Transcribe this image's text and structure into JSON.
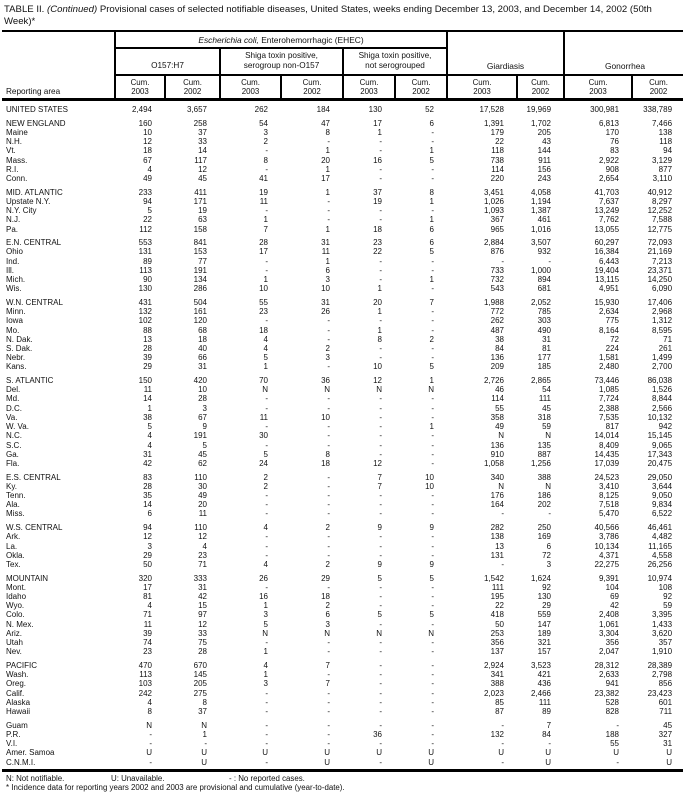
{
  "title": {
    "prefix": "TABLE II. ",
    "continued": "(Continued)",
    "rest": " Provisional cases of selected notifiable diseases, United States, weeks ending December 13, 2003, and December 14, 2002 (50th Week)*"
  },
  "header": {
    "reporting_area": "Reporting area",
    "ehec_italic": "Escherichia coli,",
    "ehec_rest": " Enterohemorrhagic (EHEC)",
    "subgroups": [
      {
        "line1": "O157:H7",
        "line2": ""
      },
      {
        "line1": "Shiga toxin positive,",
        "line2": "serogroup non-O157"
      },
      {
        "line1": "Shiga toxin positive,",
        "line2": "not serogrouped"
      }
    ],
    "giardiasis": "Giardiasis",
    "gonorrhea": "Gonorrhea",
    "cum": {
      "label": "Cum.",
      "y2003": "2003",
      "y2002": "2002"
    }
  },
  "table": {
    "columns": [
      "O157:H7 Cum. 2003",
      "O157:H7 Cum. 2002",
      "Shiga toxin positive serogroup non-O157 Cum. 2003",
      "Shiga toxin positive serogroup non-O157 Cum. 2002",
      "Shiga toxin positive not serogrouped Cum. 2003",
      "Shiga toxin positive not serogrouped Cum. 2002",
      "Giardiasis Cum. 2003",
      "Giardiasis Cum. 2002",
      "Gonorrhea Cum. 2003",
      "Gonorrhea Cum. 2002"
    ],
    "rows": [
      {
        "area": "UNITED STATES",
        "gap": true,
        "values": [
          "2,494",
          "3,657",
          "262",
          "184",
          "130",
          "52",
          "17,528",
          "19,969",
          "300,981",
          "338,789"
        ]
      },
      {
        "area": "NEW ENGLAND",
        "gap": true,
        "values": [
          "160",
          "258",
          "54",
          "47",
          "17",
          "6",
          "1,391",
          "1,702",
          "6,813",
          "7,466"
        ]
      },
      {
        "area": "Maine",
        "gap": false,
        "values": [
          "10",
          "37",
          "3",
          "8",
          "1",
          "-",
          "179",
          "205",
          "170",
          "138"
        ]
      },
      {
        "area": "N.H.",
        "gap": false,
        "values": [
          "12",
          "33",
          "2",
          "-",
          "-",
          "-",
          "22",
          "43",
          "76",
          "118"
        ]
      },
      {
        "area": "Vt.",
        "gap": false,
        "values": [
          "18",
          "14",
          "-",
          "1",
          "-",
          "1",
          "118",
          "144",
          "83",
          "94"
        ]
      },
      {
        "area": "Mass.",
        "gap": false,
        "values": [
          "67",
          "117",
          "8",
          "20",
          "16",
          "5",
          "738",
          "911",
          "2,922",
          "3,129"
        ]
      },
      {
        "area": "R.I.",
        "gap": false,
        "values": [
          "4",
          "12",
          "-",
          "1",
          "-",
          "-",
          "114",
          "156",
          "908",
          "877"
        ]
      },
      {
        "area": "Conn.",
        "gap": false,
        "values": [
          "49",
          "45",
          "41",
          "17",
          "-",
          "-",
          "220",
          "243",
          "2,654",
          "3,110"
        ]
      },
      {
        "area": "MID. ATLANTIC",
        "gap": true,
        "values": [
          "233",
          "411",
          "19",
          "1",
          "37",
          "8",
          "3,451",
          "4,058",
          "41,703",
          "40,912"
        ]
      },
      {
        "area": "Upstate N.Y.",
        "gap": false,
        "values": [
          "94",
          "171",
          "11",
          "-",
          "19",
          "1",
          "1,026",
          "1,194",
          "7,637",
          "8,297"
        ]
      },
      {
        "area": "N.Y. City",
        "gap": false,
        "values": [
          "5",
          "19",
          "-",
          "-",
          "-",
          "-",
          "1,093",
          "1,387",
          "13,249",
          "12,252"
        ]
      },
      {
        "area": "N.J.",
        "gap": false,
        "values": [
          "22",
          "63",
          "1",
          "-",
          "-",
          "1",
          "367",
          "461",
          "7,762",
          "7,588"
        ]
      },
      {
        "area": "Pa.",
        "gap": false,
        "values": [
          "112",
          "158",
          "7",
          "1",
          "18",
          "6",
          "965",
          "1,016",
          "13,055",
          "12,775"
        ]
      },
      {
        "area": "E.N. CENTRAL",
        "gap": true,
        "values": [
          "553",
          "841",
          "28",
          "31",
          "23",
          "6",
          "2,884",
          "3,507",
          "60,297",
          "72,093"
        ]
      },
      {
        "area": "Ohio",
        "gap": false,
        "values": [
          "131",
          "153",
          "17",
          "11",
          "22",
          "5",
          "876",
          "932",
          "16,384",
          "21,169"
        ]
      },
      {
        "area": "Ind.",
        "gap": false,
        "values": [
          "89",
          "77",
          "-",
          "1",
          "-",
          "-",
          "-",
          "-",
          "6,443",
          "7,213"
        ]
      },
      {
        "area": "Ill.",
        "gap": false,
        "values": [
          "113",
          "191",
          "-",
          "6",
          "-",
          "-",
          "733",
          "1,000",
          "19,404",
          "23,371"
        ]
      },
      {
        "area": "Mich.",
        "gap": false,
        "values": [
          "90",
          "134",
          "1",
          "3",
          "-",
          "1",
          "732",
          "894",
          "13,115",
          "14,250"
        ]
      },
      {
        "area": "Wis.",
        "gap": false,
        "values": [
          "130",
          "286",
          "10",
          "10",
          "1",
          "-",
          "543",
          "681",
          "4,951",
          "6,090"
        ]
      },
      {
        "area": "W.N. CENTRAL",
        "gap": true,
        "values": [
          "431",
          "504",
          "55",
          "31",
          "20",
          "7",
          "1,988",
          "2,052",
          "15,930",
          "17,406"
        ]
      },
      {
        "area": "Minn.",
        "gap": false,
        "values": [
          "132",
          "161",
          "23",
          "26",
          "1",
          "-",
          "772",
          "785",
          "2,634",
          "2,968"
        ]
      },
      {
        "area": "Iowa",
        "gap": false,
        "values": [
          "102",
          "120",
          "-",
          "-",
          "-",
          "-",
          "262",
          "303",
          "775",
          "1,312"
        ]
      },
      {
        "area": "Mo.",
        "gap": false,
        "values": [
          "88",
          "68",
          "18",
          "-",
          "1",
          "-",
          "487",
          "490",
          "8,164",
          "8,595"
        ]
      },
      {
        "area": "N. Dak.",
        "gap": false,
        "values": [
          "13",
          "18",
          "4",
          "-",
          "8",
          "2",
          "38",
          "31",
          "72",
          "71"
        ]
      },
      {
        "area": "S. Dak.",
        "gap": false,
        "values": [
          "28",
          "40",
          "4",
          "2",
          "-",
          "-",
          "84",
          "81",
          "224",
          "261"
        ]
      },
      {
        "area": "Nebr.",
        "gap": false,
        "values": [
          "39",
          "66",
          "5",
          "3",
          "-",
          "-",
          "136",
          "177",
          "1,581",
          "1,499"
        ]
      },
      {
        "area": "Kans.",
        "gap": false,
        "values": [
          "29",
          "31",
          "1",
          "-",
          "10",
          "5",
          "209",
          "185",
          "2,480",
          "2,700"
        ]
      },
      {
        "area": "S. ATLANTIC",
        "gap": true,
        "values": [
          "150",
          "420",
          "70",
          "36",
          "12",
          "1",
          "2,726",
          "2,865",
          "73,446",
          "86,038"
        ]
      },
      {
        "area": "Del.",
        "gap": false,
        "values": [
          "11",
          "10",
          "N",
          "N",
          "N",
          "N",
          "46",
          "54",
          "1,085",
          "1,526"
        ]
      },
      {
        "area": "Md.",
        "gap": false,
        "values": [
          "14",
          "28",
          "-",
          "-",
          "-",
          "-",
          "114",
          "111",
          "7,724",
          "8,844"
        ]
      },
      {
        "area": "D.C.",
        "gap": false,
        "values": [
          "1",
          "3",
          "-",
          "-",
          "-",
          "-",
          "55",
          "45",
          "2,388",
          "2,566"
        ]
      },
      {
        "area": "Va.",
        "gap": false,
        "values": [
          "38",
          "67",
          "11",
          "10",
          "-",
          "-",
          "358",
          "318",
          "7,535",
          "10,132"
        ]
      },
      {
        "area": "W. Va.",
        "gap": false,
        "values": [
          "5",
          "9",
          "-",
          "-",
          "-",
          "1",
          "49",
          "59",
          "817",
          "942"
        ]
      },
      {
        "area": "N.C.",
        "gap": false,
        "values": [
          "4",
          "191",
          "30",
          "-",
          "-",
          "-",
          "N",
          "N",
          "14,014",
          "15,145"
        ]
      },
      {
        "area": "S.C.",
        "gap": false,
        "values": [
          "4",
          "5",
          "-",
          "-",
          "-",
          "-",
          "136",
          "135",
          "8,409",
          "9,065"
        ]
      },
      {
        "area": "Ga.",
        "gap": false,
        "values": [
          "31",
          "45",
          "5",
          "8",
          "-",
          "-",
          "910",
          "887",
          "14,435",
          "17,343"
        ]
      },
      {
        "area": "Fla.",
        "gap": false,
        "values": [
          "42",
          "62",
          "24",
          "18",
          "12",
          "-",
          "1,058",
          "1,256",
          "17,039",
          "20,475"
        ]
      },
      {
        "area": "E.S. CENTRAL",
        "gap": true,
        "values": [
          "83",
          "110",
          "2",
          "-",
          "7",
          "10",
          "340",
          "388",
          "24,523",
          "29,050"
        ]
      },
      {
        "area": "Ky.",
        "gap": false,
        "values": [
          "28",
          "30",
          "2",
          "-",
          "7",
          "10",
          "N",
          "N",
          "3,410",
          "3,644"
        ]
      },
      {
        "area": "Tenn.",
        "gap": false,
        "values": [
          "35",
          "49",
          "-",
          "-",
          "-",
          "-",
          "176",
          "186",
          "8,125",
          "9,050"
        ]
      },
      {
        "area": "Ala.",
        "gap": false,
        "values": [
          "14",
          "20",
          "-",
          "-",
          "-",
          "-",
          "164",
          "202",
          "7,518",
          "9,834"
        ]
      },
      {
        "area": "Miss.",
        "gap": false,
        "values": [
          "6",
          "11",
          "-",
          "-",
          "-",
          "-",
          "-",
          "-",
          "5,470",
          "6,522"
        ]
      },
      {
        "area": "W.S. CENTRAL",
        "gap": true,
        "values": [
          "94",
          "110",
          "4",
          "2",
          "9",
          "9",
          "282",
          "250",
          "40,566",
          "46,461"
        ]
      },
      {
        "area": "Ark.",
        "gap": false,
        "values": [
          "12",
          "12",
          "-",
          "-",
          "-",
          "-",
          "138",
          "169",
          "3,786",
          "4,482"
        ]
      },
      {
        "area": "La.",
        "gap": false,
        "values": [
          "3",
          "4",
          "-",
          "-",
          "-",
          "-",
          "13",
          "6",
          "10,134",
          "11,165"
        ]
      },
      {
        "area": "Okla.",
        "gap": false,
        "values": [
          "29",
          "23",
          "-",
          "-",
          "-",
          "-",
          "131",
          "72",
          "4,371",
          "4,558"
        ]
      },
      {
        "area": "Tex.",
        "gap": false,
        "values": [
          "50",
          "71",
          "4",
          "2",
          "9",
          "9",
          "-",
          "3",
          "22,275",
          "26,256"
        ]
      },
      {
        "area": "MOUNTAIN",
        "gap": true,
        "values": [
          "320",
          "333",
          "26",
          "29",
          "5",
          "5",
          "1,542",
          "1,624",
          "9,391",
          "10,974"
        ]
      },
      {
        "area": "Mont.",
        "gap": false,
        "values": [
          "17",
          "31",
          "-",
          "-",
          "-",
          "-",
          "111",
          "92",
          "104",
          "108"
        ]
      },
      {
        "area": "Idaho",
        "gap": false,
        "values": [
          "81",
          "42",
          "16",
          "18",
          "-",
          "-",
          "195",
          "130",
          "69",
          "92"
        ]
      },
      {
        "area": "Wyo.",
        "gap": false,
        "values": [
          "4",
          "15",
          "1",
          "2",
          "-",
          "-",
          "22",
          "29",
          "42",
          "59"
        ]
      },
      {
        "area": "Colo.",
        "gap": false,
        "values": [
          "71",
          "97",
          "3",
          "6",
          "5",
          "5",
          "418",
          "559",
          "2,408",
          "3,395"
        ]
      },
      {
        "area": "N. Mex.",
        "gap": false,
        "values": [
          "11",
          "12",
          "5",
          "3",
          "-",
          "-",
          "50",
          "147",
          "1,061",
          "1,433"
        ]
      },
      {
        "area": "Ariz.",
        "gap": false,
        "values": [
          "39",
          "33",
          "N",
          "N",
          "N",
          "N",
          "253",
          "189",
          "3,304",
          "3,620"
        ]
      },
      {
        "area": "Utah",
        "gap": false,
        "values": [
          "74",
          "75",
          "-",
          "-",
          "-",
          "-",
          "356",
          "321",
          "356",
          "357"
        ]
      },
      {
        "area": "Nev.",
        "gap": false,
        "values": [
          "23",
          "28",
          "1",
          "-",
          "-",
          "-",
          "137",
          "157",
          "2,047",
          "1,910"
        ]
      },
      {
        "area": "PACIFIC",
        "gap": true,
        "values": [
          "470",
          "670",
          "4",
          "7",
          "-",
          "-",
          "2,924",
          "3,523",
          "28,312",
          "28,389"
        ]
      },
      {
        "area": "Wash.",
        "gap": false,
        "values": [
          "113",
          "145",
          "1",
          "-",
          "-",
          "-",
          "341",
          "421",
          "2,633",
          "2,798"
        ]
      },
      {
        "area": "Oreg.",
        "gap": false,
        "values": [
          "103",
          "205",
          "3",
          "7",
          "-",
          "-",
          "388",
          "436",
          "941",
          "856"
        ]
      },
      {
        "area": "Calif.",
        "gap": false,
        "values": [
          "242",
          "275",
          "-",
          "-",
          "-",
          "-",
          "2,023",
          "2,466",
          "23,382",
          "23,423"
        ]
      },
      {
        "area": "Alaska",
        "gap": false,
        "values": [
          "4",
          "8",
          "-",
          "-",
          "-",
          "-",
          "85",
          "111",
          "528",
          "601"
        ]
      },
      {
        "area": "Hawaii",
        "gap": false,
        "values": [
          "8",
          "37",
          "-",
          "-",
          "-",
          "-",
          "87",
          "89",
          "828",
          "711"
        ]
      },
      {
        "area": "Guam",
        "gap": true,
        "values": [
          "N",
          "N",
          "-",
          "-",
          "-",
          "-",
          "-",
          "7",
          "-",
          "45"
        ]
      },
      {
        "area": "P.R.",
        "gap": false,
        "values": [
          "-",
          "1",
          "-",
          "-",
          "36",
          "-",
          "132",
          "84",
          "188",
          "327"
        ]
      },
      {
        "area": "V.I.",
        "gap": false,
        "values": [
          "-",
          "-",
          "-",
          "-",
          "-",
          "-",
          "-",
          "-",
          "55",
          "31"
        ]
      },
      {
        "area": "Amer. Samoa",
        "gap": false,
        "values": [
          "U",
          "U",
          "U",
          "U",
          "U",
          "U",
          "U",
          "U",
          "U",
          "U"
        ]
      },
      {
        "area": "C.N.M.I.",
        "gap": false,
        "values": [
          "-",
          "U",
          "-",
          "U",
          "-",
          "U",
          "-",
          "U",
          "-",
          "U"
        ]
      }
    ]
  },
  "footnotes": {
    "n": "N: Not notifiable.",
    "u": "U: Unavailable.",
    "dash": "- : No reported cases.",
    "asterisk": "* Incidence data for reporting years 2002 and 2003 are provisional and cumulative (year-to-date)."
  }
}
